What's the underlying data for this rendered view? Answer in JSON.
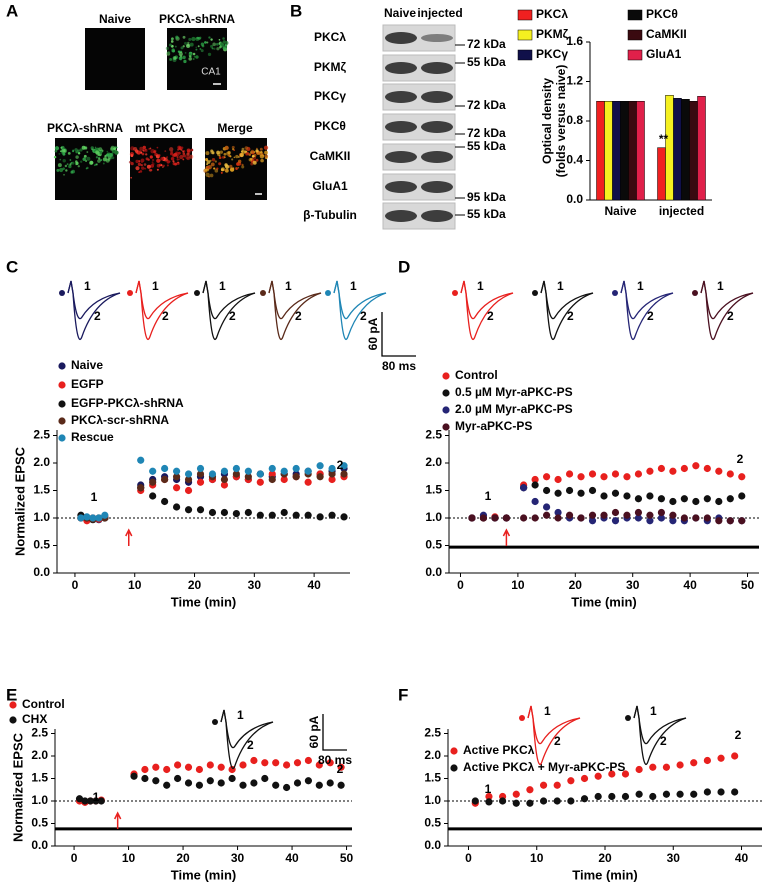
{
  "panel_labels": [
    "A",
    "B",
    "C",
    "D",
    "E",
    "F"
  ],
  "panel_a": {
    "top": [
      "Naive",
      "PKCλ-shRNA"
    ],
    "region": "CA1",
    "bottom": [
      "PKCλ-shRNA",
      "mt PKCλ",
      "Merge"
    ]
  },
  "blot": {
    "columns": [
      "Naive",
      "injected"
    ],
    "rows": [
      "PKCλ",
      "PKMζ",
      "PKCγ",
      "PKCθ",
      "CaMKII",
      "GluA1",
      "β-Tubulin"
    ],
    "markers": [
      "72 kDa",
      "55 kDa",
      "72 kDa",
      "72 kDa",
      "55 kDa",
      "95 kDa",
      "55 kDa"
    ]
  },
  "chart_data": [
    {
      "type": "bar",
      "y_label": [
        "Optical density",
        "(folds versus naive)"
      ],
      "categories": [
        "Naive",
        "injected"
      ],
      "series": [
        {
          "name": "PKCλ",
          "color": "#f02020",
          "values": [
            1.0,
            0.53
          ]
        },
        {
          "name": "PKMζ",
          "color": "#f5f020",
          "values": [
            1.0,
            1.06
          ]
        },
        {
          "name": "PKCγ",
          "color": "#10104a",
          "values": [
            1.0,
            1.03
          ]
        },
        {
          "name": "PKCθ",
          "color": "#0a0a0a",
          "values": [
            1.0,
            1.02
          ]
        },
        {
          "name": "CaMKII",
          "color": "#3a0a10",
          "values": [
            1.0,
            1.0
          ]
        },
        {
          "name": "GluA1",
          "color": "#e0204a",
          "values": [
            1.0,
            1.05
          ]
        }
      ],
      "annotation": "**",
      "ylim": [
        0,
        1.6
      ],
      "yticks": [
        {
          "value": 0,
          "label": "0.0"
        },
        {
          "value": 0.4,
          "label": "0.4"
        },
        {
          "value": 0.8,
          "label": "0.8"
        },
        {
          "value": 1.2,
          "label": "1.2"
        },
        {
          "value": 1.6,
          "label": "1.6"
        }
      ]
    },
    {
      "type": "scatter",
      "y_label": "Normalized EPSC",
      "x_label": "Time (min)",
      "trace_labels": [
        "1",
        "2"
      ],
      "scale_bar": [
        "60 pA",
        "80 ms"
      ],
      "x": [
        1,
        2,
        3,
        4,
        5,
        11,
        13,
        15,
        17,
        19,
        21,
        23,
        25,
        27,
        29,
        31,
        33,
        35,
        37,
        39,
        41,
        43,
        45
      ],
      "series": [
        {
          "name": "Naive",
          "color": "#1a1a5e",
          "values": [
            1.0,
            0.98,
            1.0,
            0.97,
            1.0,
            1.6,
            1.7,
            1.75,
            1.7,
            1.65,
            1.75,
            1.7,
            1.8,
            1.75,
            1.7,
            1.8,
            1.75,
            1.8,
            1.8,
            1.85,
            1.8,
            1.85,
            1.9
          ]
        },
        {
          "name": "EGFP",
          "color": "#e8201e",
          "values": [
            1.0,
            0.95,
            1.0,
            0.98,
            1.02,
            1.5,
            1.6,
            1.7,
            1.55,
            1.5,
            1.65,
            1.7,
            1.6,
            1.75,
            1.7,
            1.65,
            1.8,
            1.7,
            1.75,
            1.65,
            1.8,
            1.7,
            1.75
          ]
        },
        {
          "name": "EGFP-PKCλ-shRNA",
          "color": "#111111",
          "values": [
            1.05,
            1.0,
            0.97,
            1.0,
            1.0,
            1.55,
            1.4,
            1.3,
            1.2,
            1.15,
            1.15,
            1.1,
            1.1,
            1.08,
            1.1,
            1.05,
            1.05,
            1.1,
            1.05,
            1.05,
            1.02,
            1.05,
            1.02
          ]
        },
        {
          "name": "PKCλ-scr-shRNA",
          "color": "#5a2a1a",
          "values": [
            1.0,
            1.0,
            0.98,
            1.0,
            1.0,
            1.55,
            1.65,
            1.7,
            1.75,
            1.7,
            1.8,
            1.75,
            1.7,
            1.8,
            1.75,
            1.8,
            1.7,
            1.8,
            1.75,
            1.8,
            1.75,
            1.8,
            1.8
          ]
        },
        {
          "name": "Rescue",
          "color": "#1f86b5",
          "values": [
            1.0,
            1.02,
            1.0,
            1.0,
            1.05,
            2.05,
            1.85,
            1.9,
            1.85,
            1.8,
            1.9,
            1.8,
            1.85,
            1.9,
            1.85,
            1.8,
            1.9,
            1.85,
            1.9,
            1.85,
            1.95,
            1.9,
            1.95
          ]
        }
      ],
      "reference_line": 1,
      "arrow_x": 9,
      "xlim": [
        -3,
        46
      ],
      "xticks": [
        0,
        10,
        20,
        30,
        40
      ],
      "ylim": [
        0,
        2.6
      ],
      "yticks": [
        {
          "value": 0,
          "label": "0.0"
        },
        {
          "value": 0.5,
          "label": "0.5"
        },
        {
          "value": 1,
          "label": "1.0"
        },
        {
          "value": 1.5,
          "label": "1.5"
        },
        {
          "value": 2,
          "label": "2.0"
        },
        {
          "value": 2.5,
          "label": "2.5"
        }
      ]
    },
    {
      "type": "scatter",
      "x_label": "Time (min)",
      "trace_labels": [
        "1",
        "2"
      ],
      "x": [
        2,
        4,
        6,
        8,
        11,
        13,
        15,
        17,
        19,
        21,
        23,
        25,
        27,
        29,
        31,
        33,
        35,
        37,
        39,
        41,
        43,
        45,
        47,
        49
      ],
      "series": [
        {
          "name": "Control",
          "color": "#e8201e",
          "values": [
            1.0,
            1.0,
            1.02,
            1.0,
            1.6,
            1.7,
            1.75,
            1.7,
            1.8,
            1.75,
            1.8,
            1.75,
            1.8,
            1.75,
            1.8,
            1.85,
            1.9,
            1.85,
            1.9,
            1.95,
            1.9,
            1.85,
            1.8,
            1.75
          ]
        },
        {
          "name": "0.5 µM Myr-aPKC-PS",
          "color": "#111111",
          "values": [
            1.0,
            1.0,
            1.0,
            1.0,
            1.55,
            1.6,
            1.5,
            1.45,
            1.5,
            1.45,
            1.5,
            1.4,
            1.45,
            1.4,
            1.35,
            1.4,
            1.35,
            1.3,
            1.35,
            1.3,
            1.35,
            1.3,
            1.35,
            1.4
          ]
        },
        {
          "name": "2.0 µM Myr-aPKC-PS",
          "color": "#252575",
          "values": [
            1.0,
            1.05,
            1.0,
            1.0,
            1.55,
            1.3,
            1.2,
            1.1,
            1.0,
            1.0,
            0.95,
            1.0,
            0.95,
            1.0,
            1.0,
            0.95,
            1.0,
            0.95,
            0.95,
            1.0,
            0.95,
            1.0,
            0.95,
            0.95
          ]
        },
        {
          "name": "Myr-aPKC-PS",
          "color": "#4a1020",
          "values": [
            1.0,
            1.0,
            1.0,
            1.0,
            1.0,
            1.0,
            1.05,
            1.0,
            1.05,
            1.0,
            1.05,
            1.05,
            1.1,
            1.05,
            1.1,
            1.05,
            1.1,
            1.05,
            1.0,
            1.0,
            1.0,
            0.95,
            0.95,
            0.95
          ]
        }
      ],
      "reference_line": 1,
      "arrow_x": 8,
      "hline": 0.47,
      "xlim": [
        -2,
        52
      ],
      "xticks": [
        0,
        10,
        20,
        30,
        40,
        50
      ],
      "ylim": [
        0,
        2.6
      ],
      "yticks": [
        {
          "value": 0,
          "label": "0.0"
        },
        {
          "value": 0.5,
          "label": "0.5"
        },
        {
          "value": 1,
          "label": "1.0"
        },
        {
          "value": 1.5,
          "label": "1.5"
        },
        {
          "value": 2,
          "label": "2.0"
        },
        {
          "value": 2.5,
          "label": "2.5"
        }
      ]
    },
    {
      "type": "scatter",
      "y_label": "Normalized EPSC",
      "x_label": "Time (min)",
      "trace_labels": [
        "1",
        "2"
      ],
      "scale_bar": [
        "60 pA",
        "80 ms"
      ],
      "x": [
        1,
        2,
        3,
        4,
        5,
        11,
        13,
        15,
        17,
        19,
        21,
        23,
        25,
        27,
        29,
        31,
        33,
        35,
        37,
        39,
        41,
        43,
        45,
        47,
        49
      ],
      "series": [
        {
          "name": "Control",
          "color": "#e8201e",
          "values": [
            1.0,
            0.97,
            1.0,
            1.0,
            1.02,
            1.6,
            1.7,
            1.75,
            1.7,
            1.8,
            1.75,
            1.7,
            1.8,
            1.75,
            1.7,
            1.8,
            1.9,
            1.85,
            1.85,
            1.8,
            1.85,
            1.9,
            1.8,
            1.85,
            1.75
          ]
        },
        {
          "name": "CHX",
          "color": "#111111",
          "values": [
            1.05,
            1.0,
            1.0,
            1.0,
            1.0,
            1.55,
            1.5,
            1.45,
            1.35,
            1.5,
            1.4,
            1.35,
            1.45,
            1.4,
            1.5,
            1.35,
            1.4,
            1.5,
            1.35,
            1.3,
            1.4,
            1.45,
            1.35,
            1.4,
            1.35
          ]
        }
      ],
      "reference_line": 1,
      "arrow_x": 8,
      "hline": 0.38,
      "xlim": [
        -3.5,
        51
      ],
      "xticks": [
        0,
        10,
        20,
        30,
        40,
        50
      ],
      "ylim": [
        0,
        2.6
      ],
      "yticks": [
        {
          "value": 0,
          "label": "0.0"
        },
        {
          "value": 0.5,
          "label": "0.5"
        },
        {
          "value": 1,
          "label": "1.0"
        },
        {
          "value": 1.5,
          "label": "1.5"
        },
        {
          "value": 2,
          "label": "2.0"
        },
        {
          "value": 2.5,
          "label": "2.5"
        }
      ]
    },
    {
      "type": "scatter",
      "x_label": "Time (min)",
      "trace_labels": [
        "1",
        "2"
      ],
      "x": [
        1,
        3,
        5,
        7,
        9,
        11,
        13,
        15,
        17,
        19,
        21,
        23,
        25,
        27,
        29,
        31,
        33,
        35,
        37,
        39
      ],
      "series": [
        {
          "name": "Active PKCλ",
          "color": "#e8201e",
          "values": [
            0.95,
            1.1,
            1.1,
            1.15,
            1.25,
            1.35,
            1.35,
            1.45,
            1.5,
            1.55,
            1.6,
            1.6,
            1.7,
            1.75,
            1.75,
            1.8,
            1.85,
            1.9,
            1.95,
            2.0
          ]
        },
        {
          "name": "Active PKCλ + Myr-aPKC-PS",
          "color": "#111111",
          "values": [
            1.0,
            0.98,
            1.0,
            0.95,
            0.95,
            1.0,
            1.0,
            1.0,
            1.05,
            1.1,
            1.1,
            1.1,
            1.15,
            1.1,
            1.15,
            1.15,
            1.15,
            1.2,
            1.2,
            1.2
          ]
        }
      ],
      "reference_line": 1,
      "hline": 0.38,
      "xlim": [
        -3,
        43
      ],
      "xticks": [
        0,
        10,
        20,
        30,
        40
      ],
      "ylim": [
        0,
        2.6
      ],
      "yticks": [
        {
          "value": 0,
          "label": "0.0"
        },
        {
          "value": 0.5,
          "label": "0.5"
        },
        {
          "value": 1,
          "label": "1.0"
        },
        {
          "value": 1.5,
          "label": "1.5"
        },
        {
          "value": 2,
          "label": "2.0"
        },
        {
          "value": 2.5,
          "label": "2.5"
        }
      ]
    }
  ]
}
